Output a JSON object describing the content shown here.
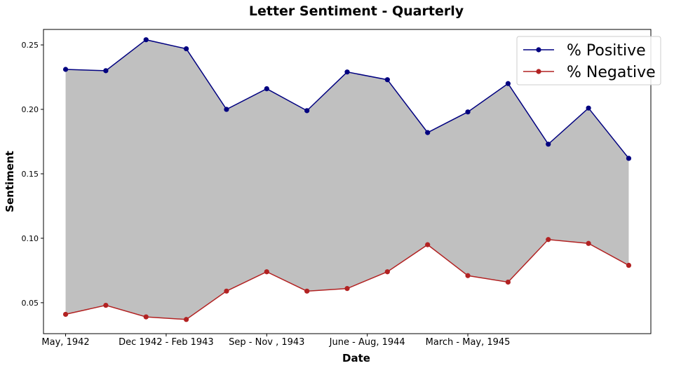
{
  "chart_data": {
    "type": "line",
    "title": "Letter Sentiment - Quarterly",
    "xlabel": "Date",
    "ylabel": "Sentiment",
    "x_tick_labels": [
      "May, 1942",
      "Dec 1942 - Feb 1943",
      "Sep - Nov , 1943",
      "June - Aug, 1944",
      "March - May, 1945"
    ],
    "x_tick_positions": [
      0,
      2.5,
      5,
      7.5,
      10
    ],
    "x": [
      0,
      1,
      2,
      3,
      4,
      5,
      6,
      7,
      8,
      9,
      10,
      11,
      12,
      13,
      14
    ],
    "xlim": [
      -0.55,
      14.55
    ],
    "ylim": [
      0.026,
      0.262
    ],
    "y_ticks": [
      0.05,
      0.1,
      0.15,
      0.2,
      0.25
    ],
    "y_tick_labels": [
      "0.05",
      "0.10",
      "0.15",
      "0.20",
      "0.25"
    ],
    "fill_between": true,
    "fill_color": "#c0c0c0",
    "grid": false,
    "legend_position": "top-right",
    "series": [
      {
        "name": "% Positive",
        "color": "#000080",
        "values": [
          0.231,
          0.23,
          0.254,
          0.247,
          0.2,
          0.216,
          0.199,
          0.229,
          0.223,
          0.182,
          0.198,
          0.22,
          0.173,
          0.201,
          0.162
        ]
      },
      {
        "name": "% Negative",
        "color": "#b22222",
        "values": [
          0.041,
          0.048,
          0.039,
          0.037,
          0.059,
          0.074,
          0.059,
          0.061,
          0.074,
          0.095,
          0.071,
          0.066,
          0.099,
          0.096,
          0.079
        ]
      }
    ]
  }
}
